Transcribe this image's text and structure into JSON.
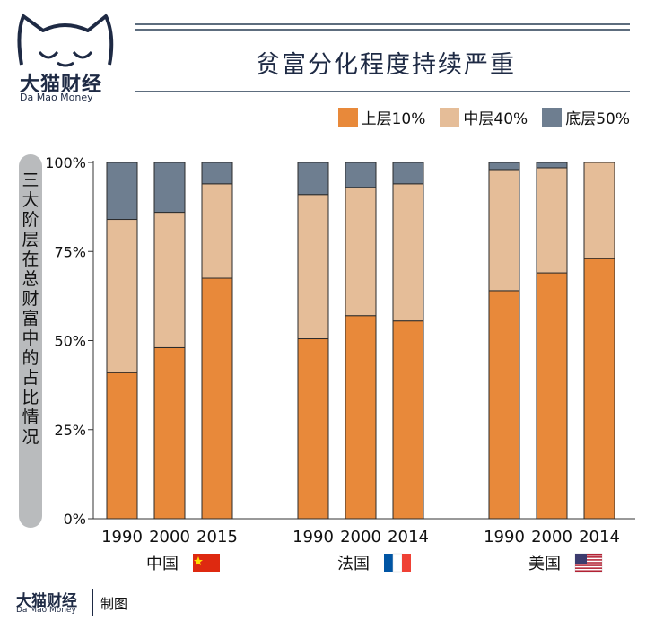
{
  "header": {
    "logo_name_zh": "大猫财经",
    "logo_name_en": "Da Mao Money",
    "title": "贫富分化程度持续严重"
  },
  "legend": [
    {
      "label": "上层10%",
      "color": "#e8893a"
    },
    {
      "label": "中层40%",
      "color": "#e5bd98"
    },
    {
      "label": "底层50%",
      "color": "#6e7e90"
    }
  ],
  "footer": {
    "brand_zh": "大猫财经",
    "brand_en": "Da Mao Money",
    "credit": "制图"
  },
  "chart_data": {
    "type": "bar",
    "stacked": true,
    "ylabel": "三大阶层在总财富中的占比情况",
    "ylim": [
      0,
      100
    ],
    "yticks": [
      "0%",
      "25%",
      "50%",
      "75%",
      "100%"
    ],
    "groups": [
      {
        "country": "中国",
        "flag": "china-flag",
        "years": [
          "1990",
          "2000",
          "2015"
        ]
      },
      {
        "country": "法国",
        "flag": "france-flag",
        "years": [
          "1990",
          "2000",
          "2014"
        ]
      },
      {
        "country": "美国",
        "flag": "usa-flag",
        "years": [
          "1990",
          "2000",
          "2014"
        ]
      }
    ],
    "series": [
      {
        "name": "上层10%",
        "color": "#e8893a",
        "values": [
          41,
          48,
          67.5,
          50.5,
          57,
          55.5,
          64,
          69,
          73
        ]
      },
      {
        "name": "中层40%",
        "color": "#e5bd98",
        "values": [
          43,
          38,
          26.5,
          40.5,
          36,
          38.5,
          34,
          29.5,
          27
        ]
      },
      {
        "name": "底层50%",
        "color": "#6e7e90",
        "values": [
          16,
          14,
          6,
          9,
          7,
          6,
          2,
          1.5,
          0
        ]
      }
    ]
  }
}
